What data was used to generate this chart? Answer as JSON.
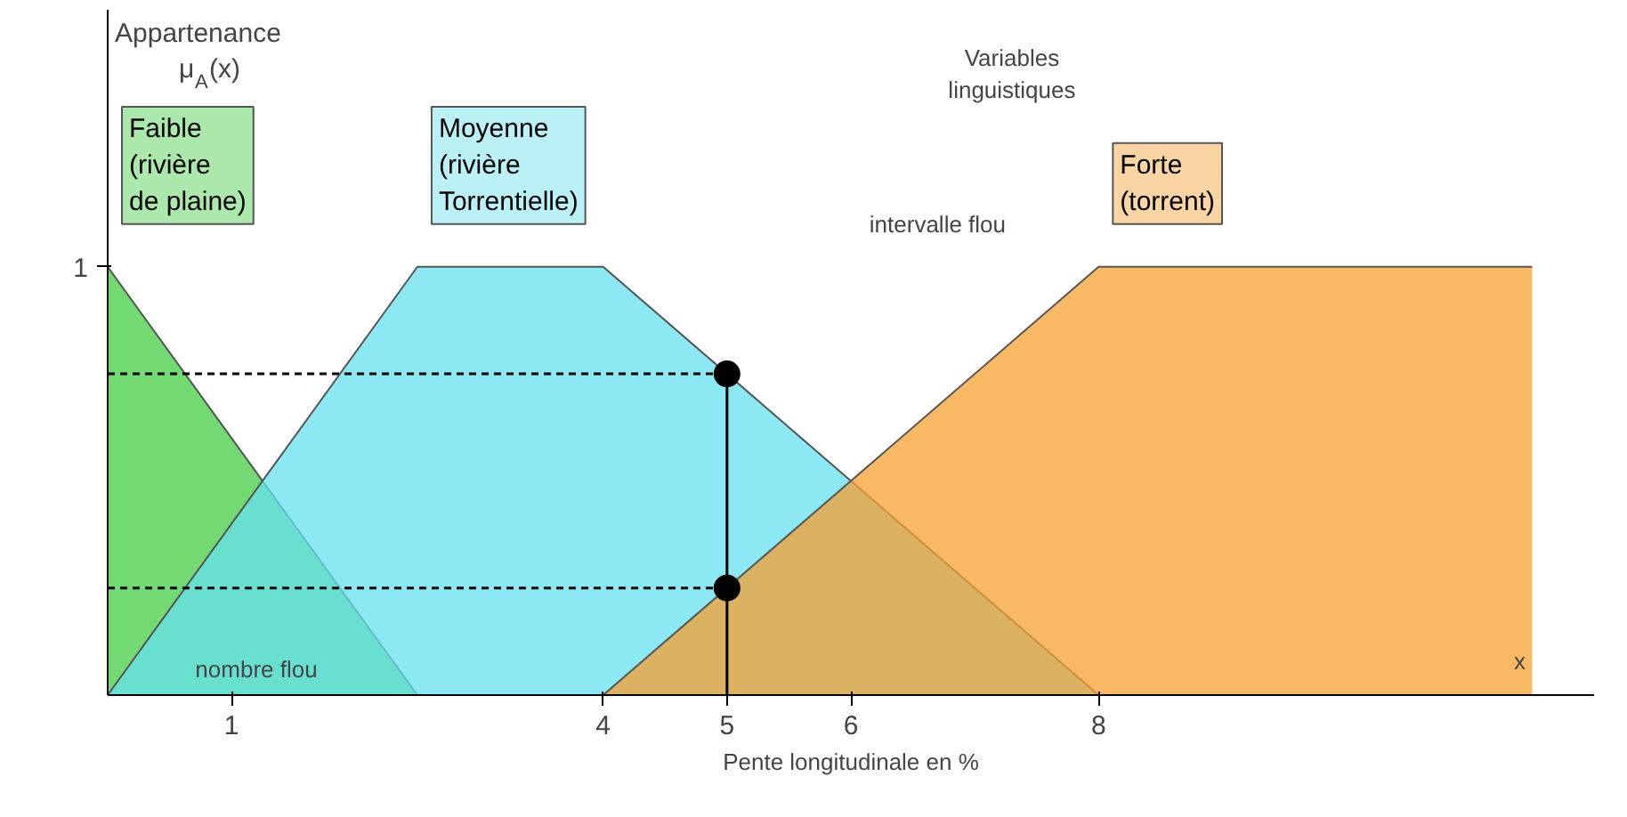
{
  "chart_data": {
    "type": "area",
    "xlabel": "Pente longitudinale en %",
    "ylabel": "Appartenance μ$_{A}$(x)",
    "xlim": [
      0,
      12
    ],
    "ylim": [
      0,
      1.6
    ],
    "xticks": [
      1,
      4,
      5,
      6,
      8
    ],
    "yticks": [
      1
    ],
    "grid": false,
    "series": [
      {
        "name": "Faible\n(rivière\nde plaine)",
        "color": "#44cc44",
        "x": [
          0,
          2.5
        ],
        "values": [
          1,
          0
        ]
      },
      {
        "name": "Moyenne\n(rivière\nTorrentielle)",
        "color": "#66e0ee",
        "x": [
          0,
          2.5,
          4,
          8
        ],
        "values": [
          0,
          1,
          1,
          0
        ]
      },
      {
        "name": "Forte\n(torrent)",
        "color": "#f5a030",
        "x": [
          4,
          8,
          11.5
        ],
        "values": [
          0,
          1,
          1
        ]
      },
      {
        "type": "line",
        "color": "#000000",
        "line_style": "dashed",
        "x": [
          0,
          5
        ],
        "values": [
          0.75,
          0.75
        ]
      },
      {
        "type": "line",
        "color": "#000000",
        "line_style": "dashed",
        "x": [
          0,
          5
        ],
        "values": [
          0.25,
          0.25
        ]
      },
      {
        "type": "line",
        "color": "#000000",
        "line_style": "solid",
        "x": [
          5,
          5
        ],
        "values": [
          0,
          0.75
        ]
      },
      {
        "type": "scatter",
        "color": "#000000",
        "marker": "circle",
        "x": [
          5,
          5
        ],
        "values": [
          0.75,
          0.25
        ]
      }
    ],
    "annotations": [
      "Variables\nlinguistiques",
      "intervalle flou",
      "nombre flou",
      "x"
    ]
  }
}
